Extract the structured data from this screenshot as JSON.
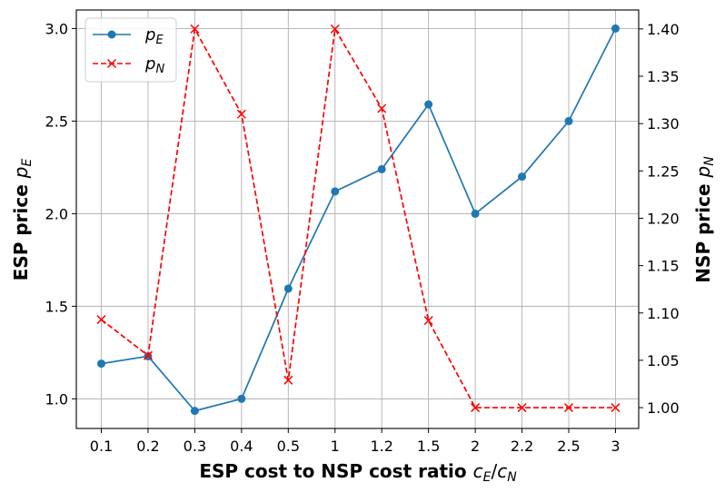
{
  "chart_data": {
    "type": "line",
    "categories": [
      "0.1",
      "0.2",
      "0.3",
      "0.4",
      "0.5",
      "1",
      "1.2",
      "1.5",
      "2",
      "2.2",
      "2.5",
      "3"
    ],
    "xlabel": {
      "text": "ESP cost to NSP cost ratio ",
      "math": "c",
      "sub1": "E",
      "slash": "/",
      "math2": "c",
      "sub2": "N"
    },
    "ylabel_left": {
      "text": "ESP price ",
      "math": "p",
      "sub": "E"
    },
    "ylabel_right": {
      "text": "NSP price ",
      "math": "p",
      "sub": "N"
    },
    "ylim_left": [
      0.84,
      3.1
    ],
    "ylim_right": [
      0.978,
      1.42
    ],
    "yticks_left": [
      "1.0",
      "1.5",
      "2.0",
      "2.5",
      "3.0"
    ],
    "yticks_right": [
      "1.00",
      "1.05",
      "1.10",
      "1.15",
      "1.20",
      "1.25",
      "1.30",
      "1.35",
      "1.40"
    ],
    "grid": true,
    "legend_position": "top-left",
    "series": [
      {
        "name": "p",
        "sub": "E",
        "axis": "left",
        "color": "#1f77b4",
        "linestyle": "solid",
        "marker": "circle",
        "values": [
          1.19,
          1.23,
          0.935,
          1.0,
          1.595,
          2.12,
          2.24,
          2.59,
          2.0,
          2.2,
          2.5,
          3.0
        ]
      },
      {
        "name": "p",
        "sub": "N",
        "axis": "right",
        "color": "#ff0000",
        "linestyle": "dashed",
        "marker": "x",
        "values": [
          1.093,
          1.055,
          1.4,
          1.31,
          1.029,
          1.4,
          1.316,
          1.092,
          1.0,
          1.0,
          1.0,
          1.0
        ]
      }
    ]
  }
}
